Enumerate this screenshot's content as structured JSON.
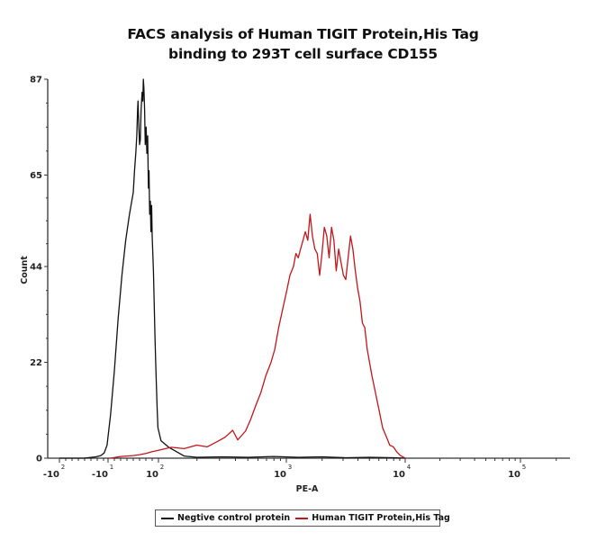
{
  "chart_data": {
    "type": "line",
    "title": "FACS analysis of Human TIGIT Protein,His Tag",
    "subtitle": "binding to 293T cell surface CD155",
    "xlabel": "PE-A",
    "ylabel": "Count",
    "ylim": [
      0,
      87
    ],
    "y_ticks": [
      "0",
      "22",
      "44",
      "65",
      "87"
    ],
    "y_tick_values": [
      0,
      22,
      44,
      65,
      87
    ],
    "x_scale": "logicle",
    "x_ticks": [
      {
        "base": "-10",
        "exp": "2",
        "pos": -2
      },
      {
        "base": "-10",
        "exp": "1",
        "pos": -1
      },
      {
        "base": "10",
        "exp": "2",
        "pos": 2
      },
      {
        "base": "10",
        "exp": "3",
        "pos": 3
      },
      {
        "base": "10",
        "exp": "4",
        "pos": 4
      },
      {
        "base": "10",
        "exp": "5",
        "pos": 5
      }
    ],
    "xlim_pos": [
      -2.1,
      5.45
    ],
    "grid": false,
    "legend_position": "bottom",
    "series": [
      {
        "name": "Negtive control protein",
        "color": "#111111",
        "points": [
          [
            -2.0,
            0
          ],
          [
            -1.5,
            0
          ],
          [
            -1.25,
            0.3
          ],
          [
            -1.15,
            0.6
          ],
          [
            -1.08,
            1.2
          ],
          [
            -1.02,
            3
          ],
          [
            -0.9,
            10
          ],
          [
            -0.75,
            20
          ],
          [
            -0.6,
            32
          ],
          [
            -0.45,
            42
          ],
          [
            -0.3,
            50
          ],
          [
            -0.15,
            56
          ],
          [
            0.0,
            61
          ],
          [
            0.1,
            66
          ],
          [
            0.2,
            70
          ],
          [
            0.28,
            74
          ],
          [
            0.34,
            80
          ],
          [
            0.38,
            82
          ],
          [
            0.44,
            76
          ],
          [
            0.5,
            72
          ],
          [
            0.56,
            73
          ],
          [
            0.62,
            80
          ],
          [
            0.7,
            84
          ],
          [
            0.76,
            82
          ],
          [
            0.8,
            87
          ],
          [
            0.84,
            85
          ],
          [
            0.9,
            80
          ],
          [
            0.95,
            72
          ],
          [
            1.02,
            76
          ],
          [
            1.08,
            70
          ],
          [
            1.14,
            74
          ],
          [
            1.2,
            62
          ],
          [
            1.25,
            66
          ],
          [
            1.3,
            56
          ],
          [
            1.36,
            59
          ],
          [
            1.4,
            52
          ],
          [
            1.46,
            58
          ],
          [
            1.5,
            51
          ],
          [
            1.55,
            47
          ],
          [
            1.6,
            43
          ],
          [
            1.66,
            36
          ],
          [
            1.72,
            28
          ],
          [
            1.78,
            22
          ],
          [
            1.84,
            16
          ],
          [
            1.9,
            11
          ],
          [
            1.96,
            7
          ],
          [
            2.02,
            4
          ],
          [
            2.08,
            2.5
          ],
          [
            2.14,
            1.5
          ],
          [
            2.2,
            0.5
          ],
          [
            2.3,
            0.2
          ],
          [
            2.5,
            0.3
          ],
          [
            2.7,
            0.2
          ],
          [
            2.9,
            0.4
          ],
          [
            3.1,
            0.2
          ],
          [
            3.3,
            0.3
          ],
          [
            3.5,
            0.1
          ],
          [
            3.7,
            0.2
          ],
          [
            3.9,
            0.1
          ],
          [
            4.0,
            0
          ]
        ]
      },
      {
        "name": "Human TIGIT Protein,His Tag",
        "color": "#c0161c",
        "points": [
          [
            -0.9,
            0
          ],
          [
            -0.5,
            0.4
          ],
          [
            0.0,
            0.6
          ],
          [
            0.5,
            0.8
          ],
          [
            1.0,
            1.1
          ],
          [
            1.5,
            1.5
          ],
          [
            2.0,
            1.8
          ],
          [
            2.1,
            2.5
          ],
          [
            2.2,
            2.2
          ],
          [
            2.3,
            3.0
          ],
          [
            2.38,
            2.6
          ],
          [
            2.46,
            3.8
          ],
          [
            2.52,
            4.8
          ],
          [
            2.58,
            6.4
          ],
          [
            2.62,
            4.2
          ],
          [
            2.68,
            6.2
          ],
          [
            2.72,
            8.8
          ],
          [
            2.76,
            12
          ],
          [
            2.8,
            15
          ],
          [
            2.84,
            19
          ],
          [
            2.88,
            22
          ],
          [
            2.91,
            25
          ],
          [
            2.94,
            30
          ],
          [
            2.97,
            34
          ],
          [
            3.0,
            38
          ],
          [
            3.03,
            42
          ],
          [
            3.06,
            44
          ],
          [
            3.08,
            47
          ],
          [
            3.1,
            46
          ],
          [
            3.12,
            48
          ],
          [
            3.14,
            50
          ],
          [
            3.16,
            52
          ],
          [
            3.18,
            50
          ],
          [
            3.2,
            56
          ],
          [
            3.22,
            51
          ],
          [
            3.24,
            48
          ],
          [
            3.26,
            47
          ],
          [
            3.28,
            42
          ],
          [
            3.3,
            47
          ],
          [
            3.32,
            53
          ],
          [
            3.34,
            51
          ],
          [
            3.36,
            46
          ],
          [
            3.38,
            53
          ],
          [
            3.4,
            50
          ],
          [
            3.42,
            43
          ],
          [
            3.44,
            48
          ],
          [
            3.46,
            45
          ],
          [
            3.48,
            42
          ],
          [
            3.5,
            41
          ],
          [
            3.52,
            46
          ],
          [
            3.54,
            51
          ],
          [
            3.56,
            48
          ],
          [
            3.58,
            43
          ],
          [
            3.6,
            39
          ],
          [
            3.62,
            36
          ],
          [
            3.64,
            31
          ],
          [
            3.66,
            30
          ],
          [
            3.68,
            25
          ],
          [
            3.7,
            22
          ],
          [
            3.72,
            19
          ],
          [
            3.75,
            15
          ],
          [
            3.78,
            11
          ],
          [
            3.81,
            7
          ],
          [
            3.84,
            5
          ],
          [
            3.87,
            3
          ],
          [
            3.9,
            2.6
          ],
          [
            3.93,
            1.4
          ],
          [
            3.96,
            0.6
          ],
          [
            4.0,
            0
          ]
        ]
      }
    ]
  }
}
